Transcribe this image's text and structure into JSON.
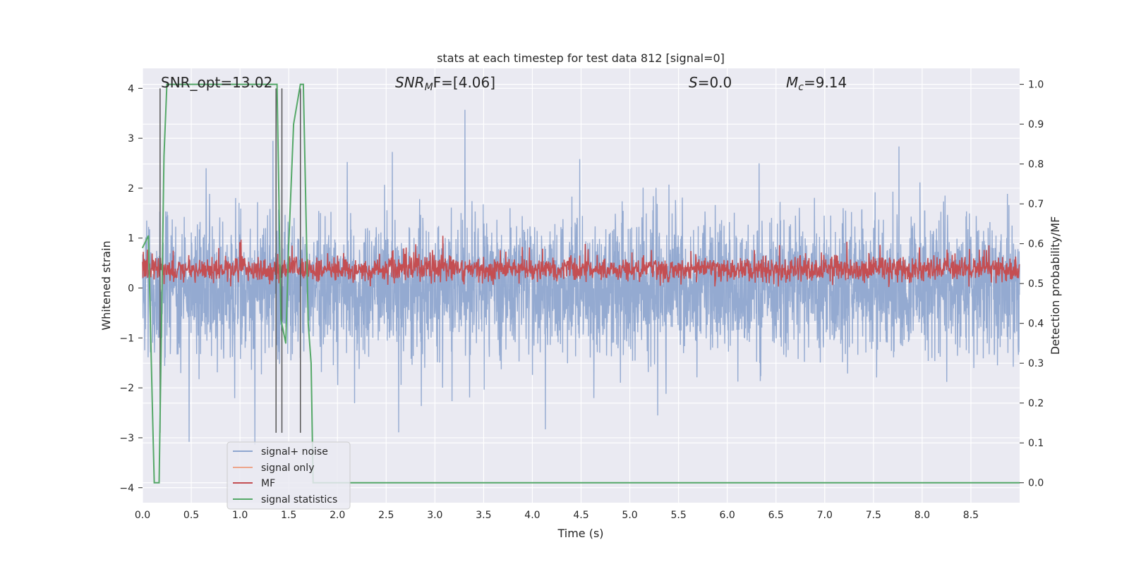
{
  "chart_data": {
    "type": "line",
    "title": "stats at each timestep for test data 812 [signal=0]",
    "xlabel": "Time (s)",
    "ylabel": "Whitened strain",
    "ylabel_right": "Detection probability/MF",
    "xlim": [
      0,
      9.0
    ],
    "ylim": [
      -4.3,
      4.4
    ],
    "ylim_right": [
      -0.05,
      1.04
    ],
    "x_ticks": [
      "0.0",
      "0.5",
      "1.0",
      "1.5",
      "2.0",
      "2.5",
      "3.0",
      "3.5",
      "4.0",
      "4.5",
      "5.0",
      "5.5",
      "6.0",
      "6.5",
      "7.0",
      "7.5",
      "8.0",
      "8.5"
    ],
    "y_ticks": [
      "−4",
      "−3",
      "−2",
      "−1",
      "0",
      "1",
      "2",
      "3",
      "4"
    ],
    "y_ticks_right": [
      "0.0",
      "0.1",
      "0.2",
      "0.3",
      "0.4",
      "0.5",
      "0.6",
      "0.7",
      "0.8",
      "0.9",
      "1.0"
    ],
    "annotations": {
      "snr_opt": "SNR_opt=13.02",
      "snr_mf_main": "SNR",
      "snr_mf_sub": "M",
      "snr_mf_rest": "F=[4.06]",
      "s_sym": "S",
      "s_val": "=0.0",
      "mc_sym": "M",
      "mc_sub": "c",
      "mc_val": "=9.14"
    },
    "legend": {
      "placement": "lower-left",
      "entries": [
        {
          "label": "signal+ noise",
          "color": "#8fa6cf"
        },
        {
          "label": "signal only",
          "color": "#eda58a"
        },
        {
          "label": "MF",
          "color": "#c44e52"
        },
        {
          "label": "signal statistics",
          "color": "#55a868"
        }
      ]
    },
    "series": [
      {
        "name": "signal+ noise",
        "axis": "left",
        "color": "#8fa6cf",
        "description": "whitened noisy strain, oscillating roughly between -2.5 and 3, dense band between -1.5 and 1.6",
        "envelope_min": -3.9,
        "envelope_max": 4.0
      },
      {
        "name": "MF",
        "axis": "right",
        "color": "#c44e52",
        "description": "matched filter output fluctuating between about 0.5 and 0.62",
        "range": [
          0.49,
          0.62
        ]
      },
      {
        "name": "signal statistics",
        "axis": "right",
        "color": "#55a868",
        "x": [
          0.0,
          0.06,
          0.1,
          0.12,
          0.17,
          0.22,
          0.25,
          1.38,
          1.42,
          1.47,
          1.5,
          1.55,
          1.62,
          1.65,
          1.7,
          1.73,
          1.75,
          9.0
        ],
        "y": [
          0.59,
          0.62,
          0.2,
          0.0,
          0.0,
          0.82,
          1.0,
          1.0,
          0.41,
          0.35,
          0.6,
          0.9,
          1.0,
          1.0,
          0.4,
          0.3,
          0.0,
          0.0
        ]
      }
    ],
    "vertical_markers": [
      0.18,
      1.37,
      1.43,
      1.62
    ]
  }
}
